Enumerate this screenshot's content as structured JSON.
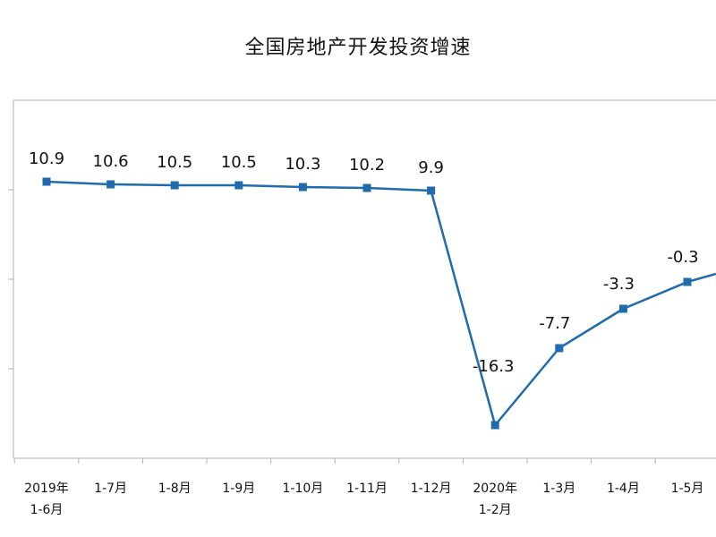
{
  "chart_data": {
    "type": "line",
    "title": "全国房地产开发投资增速",
    "categories": [
      [
        "2019年",
        "1-6月"
      ],
      [
        "1-7月"
      ],
      [
        "1-8月"
      ],
      [
        "1-9月"
      ],
      [
        "1-10月"
      ],
      [
        "1-11月"
      ],
      [
        "1-12月"
      ],
      [
        "2020年",
        "1-2月"
      ],
      [
        "1-3月"
      ],
      [
        "1-4月"
      ],
      [
        "1-5月"
      ]
    ],
    "series": [
      {
        "values": [
          10.9,
          10.6,
          10.5,
          10.5,
          10.3,
          10.2,
          9.9,
          -16.3,
          -7.7,
          -3.3,
          -0.3
        ]
      }
    ],
    "data_labels": [
      "10.9",
      "10.6",
      "10.5",
      "10.5",
      "10.3",
      "10.2",
      "9.9",
      "-16.3",
      "-7.7",
      "-3.3",
      "-0.3"
    ],
    "ylim": [
      -20,
      20
    ],
    "grid": false,
    "colors": {
      "line": "#1f6bab",
      "marker": "#1f6bab",
      "axis": "#b0b0b0",
      "text": "#111111"
    }
  }
}
